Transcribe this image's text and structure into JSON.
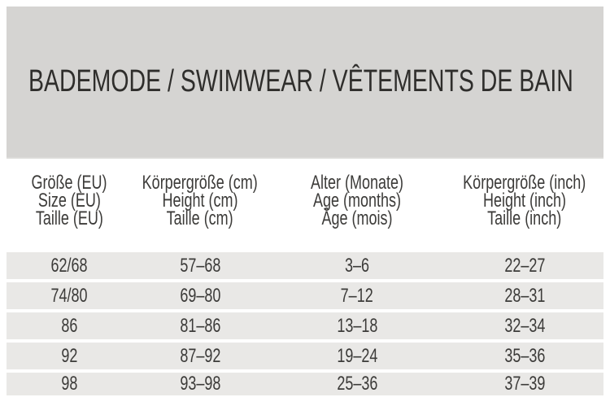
{
  "title": "BADEMODE / SWIMWEAR / VÊTEMENTS DE BAIN",
  "colors": {
    "background": "#ffffff",
    "band": "#d5d4d2",
    "band_edge": "#dcdbd9",
    "row": "#e9e8e6",
    "title_text": "#2f2e2c",
    "table_text": "#3c3b39"
  },
  "table": {
    "columns": [
      {
        "id": "size-eu",
        "lines": [
          "Größe (EU)",
          "Size (EU)",
          "Taille (EU)"
        ]
      },
      {
        "id": "height-cm",
        "lines": [
          "Körpergröße (cm)",
          "Height (cm)",
          "Taille (cm)"
        ]
      },
      {
        "id": "age-months",
        "lines": [
          "Alter (Monate)",
          "Age (months)",
          "Âge (mois)"
        ]
      },
      {
        "id": "height-inch",
        "lines": [
          "Körpergröße (inch)",
          "Height (inch)",
          "Taille (inch)"
        ]
      }
    ],
    "rows": [
      [
        "62/68",
        "57–68",
        "3–6",
        "22–27"
      ],
      [
        "74/80",
        "69–80",
        "7–12",
        "28–31"
      ],
      [
        "86",
        "81–86",
        "13–18",
        "32–34"
      ],
      [
        "92",
        "87–92",
        "19–24",
        "35–36"
      ],
      [
        "98",
        "93–98",
        "25–36",
        "37–39"
      ]
    ]
  }
}
